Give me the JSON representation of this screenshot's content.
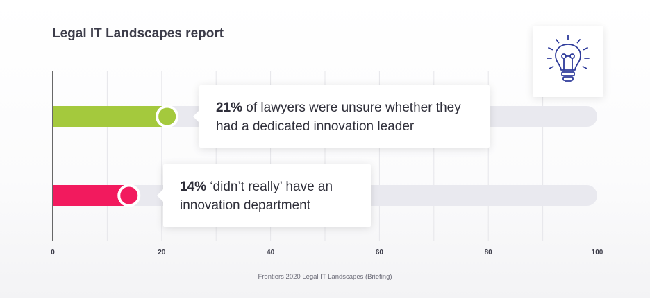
{
  "title": "Legal IT Landscapes report",
  "source": "Frontiers 2020 Legal IT Landscapes (Briefing)",
  "icon": "lightbulb-icon",
  "colors": {
    "track": "#e9e9ef",
    "axis": "#1a1a1a",
    "grid": "#e6e6ea",
    "icon": "#2e3b9b"
  },
  "chart_data": {
    "type": "bar",
    "orientation": "horizontal",
    "xlim": [
      0,
      100
    ],
    "x_ticks": [
      "0",
      "20",
      "40",
      "60",
      "80",
      "100"
    ],
    "bars": [
      {
        "value": 21,
        "color": "#a4c93d",
        "pct_label": "21%",
        "text": " of lawyers were unsure whether they had a dedicated innovation leader"
      },
      {
        "value": 14,
        "color": "#f21a5e",
        "pct_label": "14%",
        "text": " ‘didn’t really’ have an innovation department"
      }
    ]
  }
}
